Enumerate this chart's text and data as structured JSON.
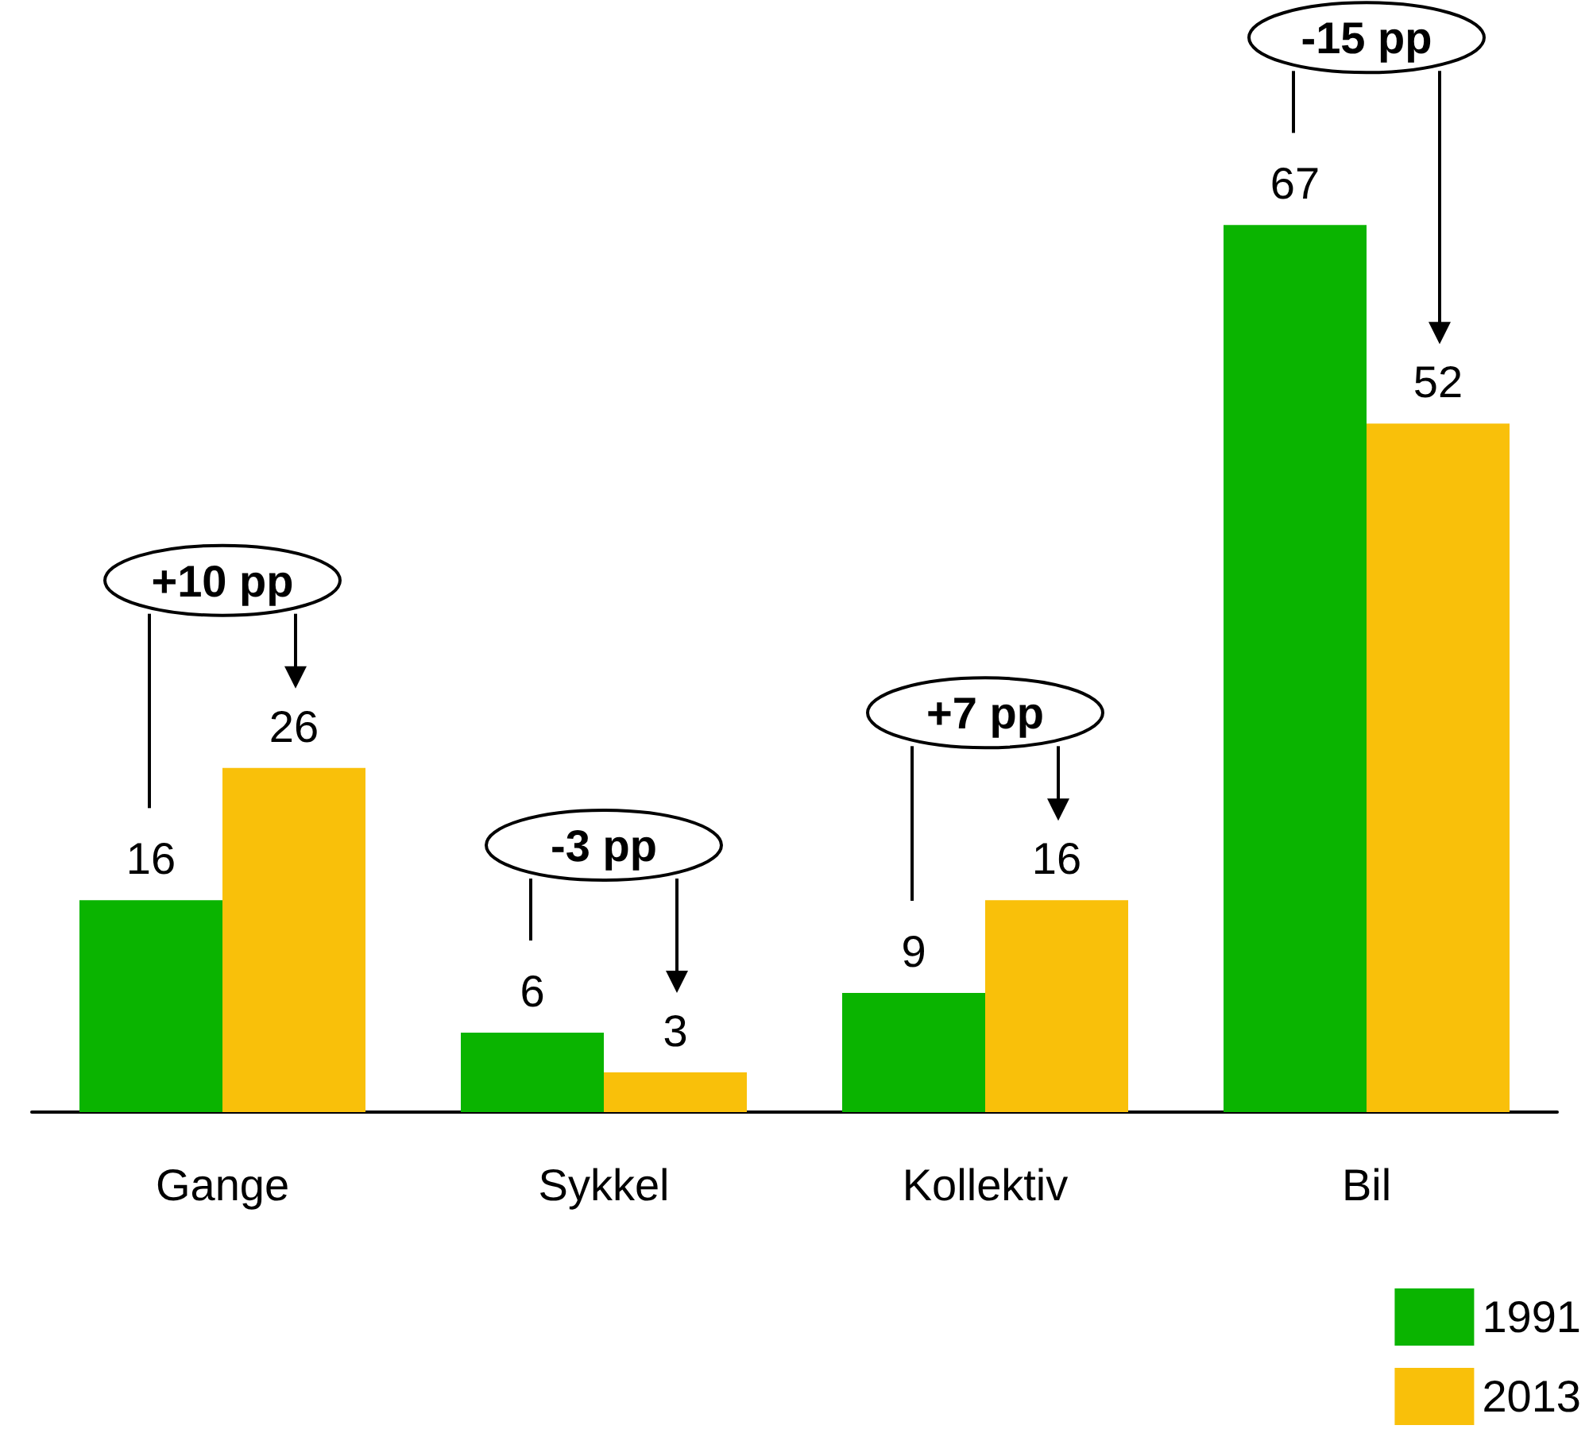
{
  "chart_data": {
    "type": "bar",
    "categories": [
      "Gange",
      "Sykkel",
      "Kollektiv",
      "Bil"
    ],
    "series": [
      {
        "name": "1991",
        "color": "#0ab400",
        "values": [
          16,
          6,
          9,
          67
        ]
      },
      {
        "name": "2013",
        "color": "#f9c00a",
        "values": [
          26,
          3,
          16,
          52
        ]
      }
    ],
    "data_labels": true,
    "legend": "bottom right",
    "annotations": [
      "+10 pp",
      "-3 pp",
      "+7 pp",
      "-15 pp"
    ]
  }
}
